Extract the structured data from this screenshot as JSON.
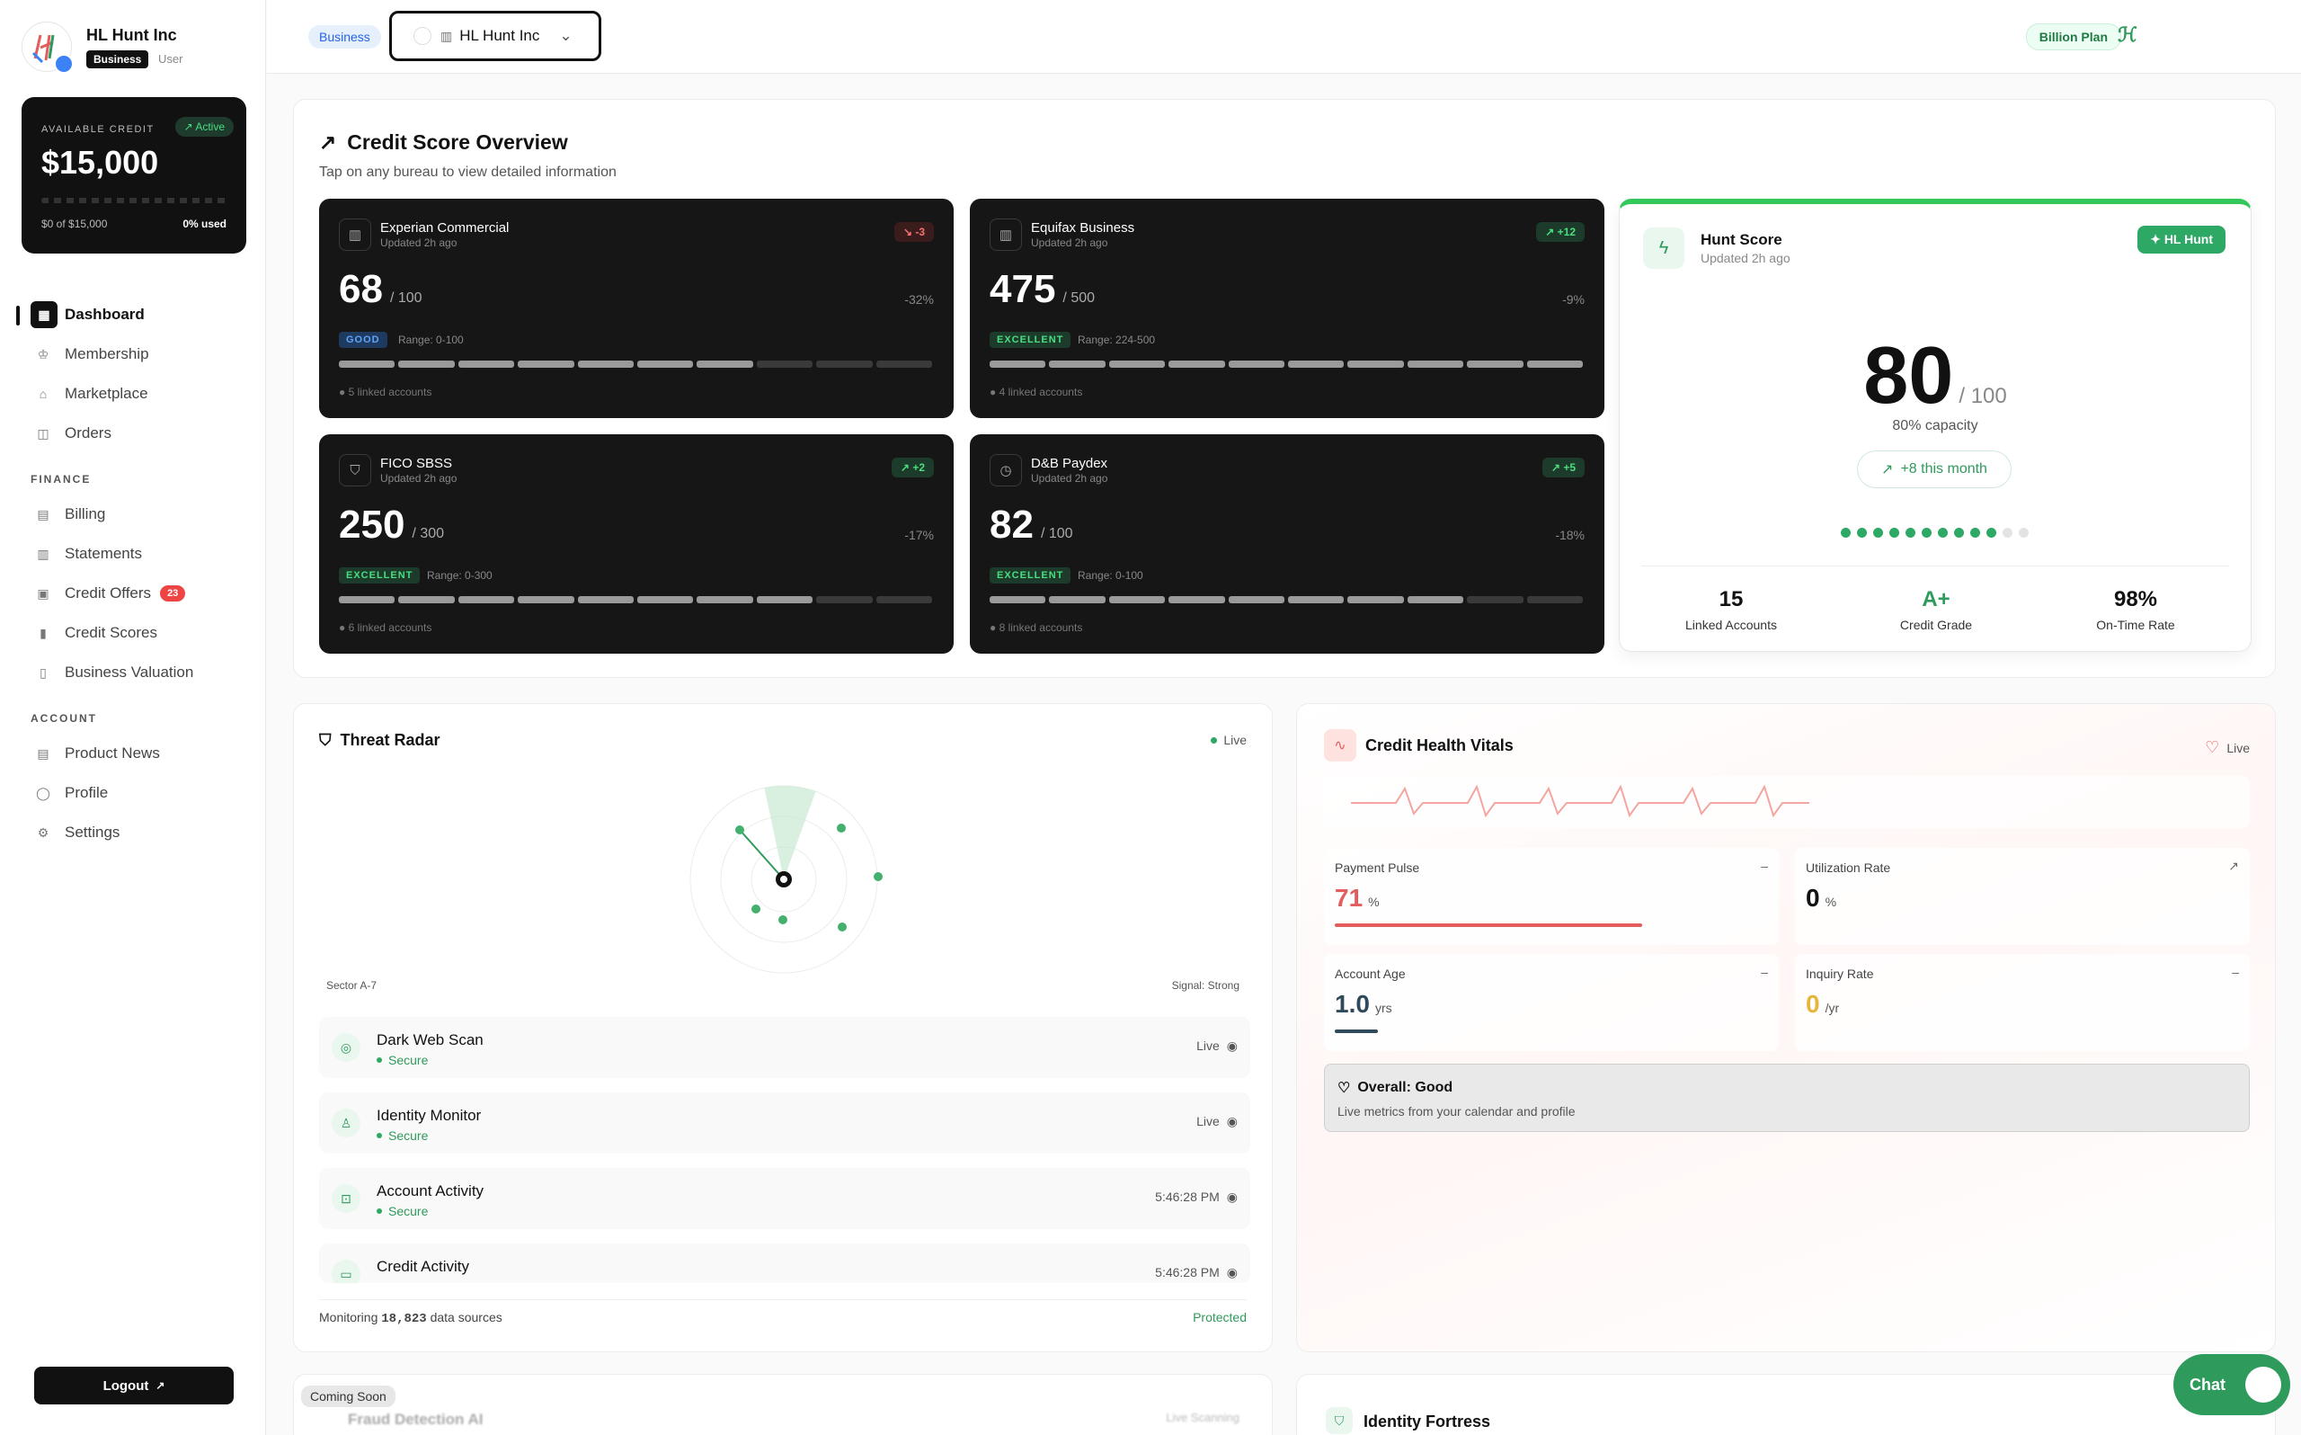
{
  "brand": {
    "name": "HL Hunt Inc",
    "type_badge": "Business",
    "role": "User"
  },
  "credit_card": {
    "label": "AVAILABLE CREDIT",
    "status": "Active",
    "amount": "$15,000",
    "sub": "$0 of $15,000",
    "used": "0% used",
    "used_fraction": 0
  },
  "nav": {
    "main": [
      {
        "label": "Dashboard",
        "icon": "dashboard-icon",
        "active": true
      },
      {
        "label": "Membership",
        "icon": "crown-icon"
      },
      {
        "label": "Marketplace",
        "icon": "store-icon"
      },
      {
        "label": "Orders",
        "icon": "box-icon"
      }
    ],
    "finance_label": "FINANCE",
    "finance": [
      {
        "label": "Billing",
        "icon": "receipt-icon"
      },
      {
        "label": "Statements",
        "icon": "document-icon"
      },
      {
        "label": "Credit Offers",
        "icon": "gift-icon",
        "badge": "23"
      },
      {
        "label": "Credit Scores",
        "icon": "bar-chart-icon"
      },
      {
        "label": "Business Valuation",
        "icon": "building-icon"
      }
    ],
    "account_label": "ACCOUNT",
    "account": [
      {
        "label": "Product News",
        "icon": "newspaper-icon"
      },
      {
        "label": "Profile",
        "icon": "user-icon"
      },
      {
        "label": "Settings",
        "icon": "gear-icon"
      }
    ],
    "logout": "Logout"
  },
  "topbar": {
    "chip": "Business",
    "selected_account": "HL Hunt Inc",
    "plan": "Billion Plan"
  },
  "overview": {
    "title": "Credit Score Overview",
    "subtitle": "Tap on any bureau to view detailed information",
    "bureaus": [
      {
        "name": "Experian Commercial",
        "updated": "Updated 2h ago",
        "trend": "-3",
        "trend_dir": "down",
        "score": "68",
        "max": "/ 100",
        "pct": "-32%",
        "tier": "GOOD",
        "range": "Range: 0-100",
        "linked": "5 linked accounts",
        "filled_segments": 7,
        "total_segments": 10
      },
      {
        "name": "Equifax Business",
        "updated": "Updated 2h ago",
        "trend": "+12",
        "trend_dir": "up",
        "score": "475",
        "max": "/ 500",
        "pct": "-9%",
        "tier": "EXCELLENT",
        "range": "Range: 224-500",
        "linked": "4 linked accounts",
        "filled_segments": 10,
        "total_segments": 10
      },
      {
        "name": "FICO SBSS",
        "updated": "Updated 2h ago",
        "trend": "+2",
        "trend_dir": "up",
        "score": "250",
        "max": "/ 300",
        "pct": "-17%",
        "tier": "EXCELLENT",
        "range": "Range: 0-300",
        "linked": "6 linked accounts",
        "filled_segments": 8,
        "total_segments": 10
      },
      {
        "name": "D&B Paydex",
        "updated": "Updated 2h ago",
        "trend": "+5",
        "trend_dir": "up",
        "score": "82",
        "max": "/ 100",
        "pct": "-18%",
        "tier": "EXCELLENT",
        "range": "Range: 0-100",
        "linked": "8 linked accounts",
        "filled_segments": 8,
        "total_segments": 10
      }
    ],
    "hunt": {
      "name": "Hunt Score",
      "updated": "Updated 2h ago",
      "chip": "HL Hunt",
      "score": "80",
      "max": "/ 100",
      "capacity": "80% capacity",
      "month": "+8 this month",
      "dots_filled": 10,
      "dots_total": 12,
      "stats": [
        {
          "value": "15",
          "label": "Linked Accounts"
        },
        {
          "value": "A+",
          "label": "Credit Grade"
        },
        {
          "value": "98%",
          "label": "On-Time Rate"
        }
      ]
    }
  },
  "threat": {
    "title": "Threat Radar",
    "live": "Live",
    "sector": "Sector A-7",
    "signal": "Signal: Strong",
    "rows": [
      {
        "name": "Dark Web Scan",
        "status": "Secure",
        "right": "Live",
        "icon": "globe-icon"
      },
      {
        "name": "Identity Monitor",
        "status": "Secure",
        "right": "Live",
        "icon": "user-icon"
      },
      {
        "name": "Account Activity",
        "status": "Secure",
        "right": "5:46:28 PM",
        "icon": "lock-icon"
      },
      {
        "name": "Credit Activity",
        "status": "",
        "right": "5:46:28 PM",
        "icon": "card-icon"
      }
    ],
    "monitoring_prefix": "Monitoring",
    "monitoring_count": "18,823",
    "monitoring_suffix": "data sources",
    "protected": "Protected"
  },
  "vitals": {
    "title": "Credit Health Vitals",
    "live": "Live",
    "metrics": [
      {
        "label": "Payment Pulse",
        "value": "71",
        "unit": "%",
        "trend": "–",
        "color": "#e35d5d",
        "fill": 0.71
      },
      {
        "label": "Utilization Rate",
        "value": "0",
        "unit": "%",
        "trend": "↗",
        "color": "#111111",
        "fill": 0
      },
      {
        "label": "Account Age",
        "value": "1.0",
        "unit": "yrs",
        "trend": "–",
        "color": "#2f4a5a",
        "fill": 0.1
      },
      {
        "label": "Inquiry Rate",
        "value": "0",
        "unit": "/yr",
        "trend": "–",
        "color": "#e8b53c",
        "fill": 0
      }
    ],
    "overall_title": "Overall: Good",
    "overall_sub": "Live metrics from your calendar and profile"
  },
  "bottom": {
    "coming_soon": "Coming Soon",
    "fraud": "Fraud Detection AI",
    "scanning": "Live Scanning",
    "fortress": "Identity Fortress"
  },
  "chat": {
    "label": "Chat"
  }
}
